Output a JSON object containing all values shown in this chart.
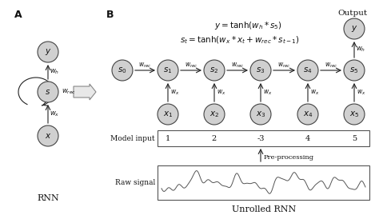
{
  "bg_color": "#ffffff",
  "node_color": "#d0d0d0",
  "node_edge_color": "#444444",
  "arrow_color": "#222222",
  "text_color": "#111111",
  "label_A": "A",
  "label_B": "B",
  "label_RNN": "RNN",
  "label_Unrolled": "Unrolled RNN",
  "label_Output": "Output",
  "formula1": "$y = \\tanh(w_h * s_5)$",
  "formula2": "$s_t = \\tanh(w_x * x_t + w_{rec} * s_{t-1})$",
  "model_input_label": "Model input",
  "raw_signal_label": "Raw signal",
  "preprocessing_label": "Pre-processing",
  "model_input_values": [
    "1",
    "2",
    "-3",
    "4",
    "5"
  ],
  "fig_width": 4.74,
  "fig_height": 2.69
}
